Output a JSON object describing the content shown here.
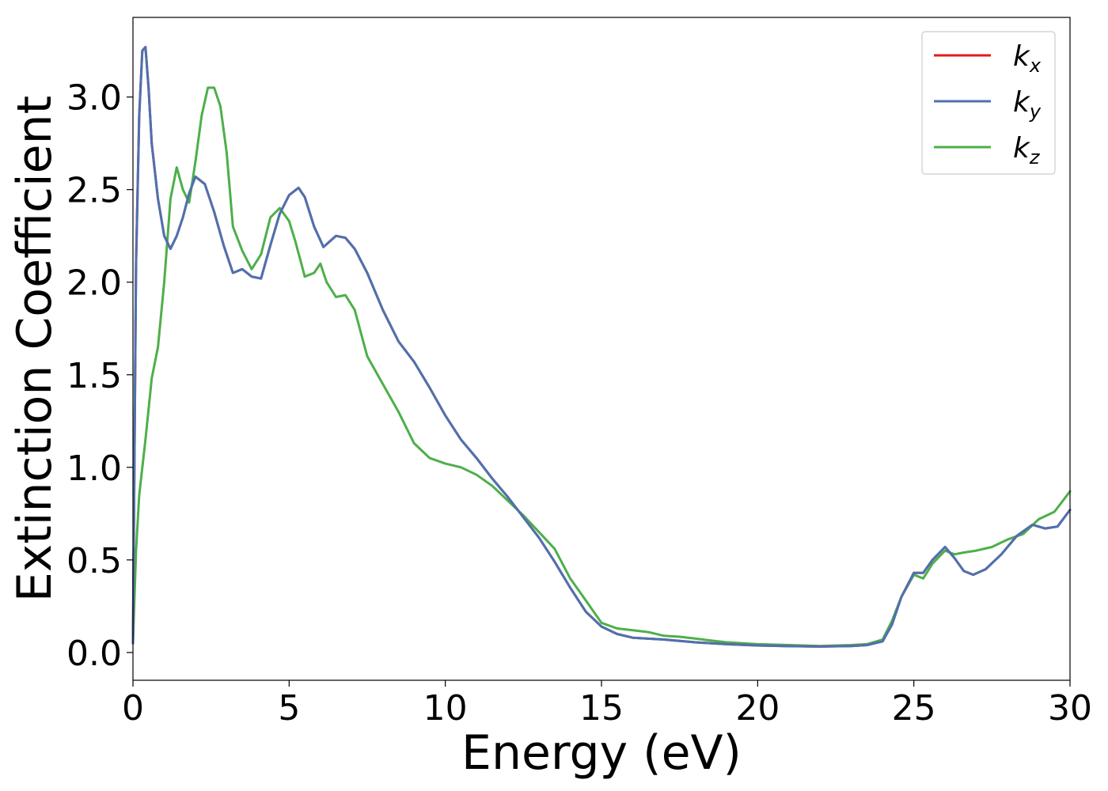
{
  "chart_data": {
    "type": "line",
    "title": "",
    "xlabel": "Energy (eV)",
    "ylabel": "Extinction Coefficient",
    "xlim": [
      0,
      30
    ],
    "ylim": [
      -0.15,
      3.43
    ],
    "xticks": [
      0,
      5,
      10,
      15,
      20,
      25,
      30
    ],
    "xtick_labels": [
      "0",
      "5",
      "10",
      "15",
      "20",
      "25",
      "30"
    ],
    "yticks": [
      0.0,
      0.5,
      1.0,
      1.5,
      2.0,
      2.5,
      3.0
    ],
    "ytick_labels": [
      "0.0",
      "0.5",
      "1.0",
      "1.5",
      "2.0",
      "2.5",
      "3.0"
    ],
    "grid": false,
    "legend_position": "top-right",
    "series": [
      {
        "name": "k",
        "subscript": "x",
        "color": "#e41a1c",
        "x": [
          0,
          0.1,
          0.2,
          0.3,
          0.4,
          0.5,
          0.6,
          0.8,
          1.0,
          1.2,
          1.4,
          1.6,
          1.8,
          2.0,
          2.3,
          2.6,
          2.9,
          3.2,
          3.5,
          3.8,
          4.1,
          4.4,
          4.7,
          5.0,
          5.3,
          5.5,
          5.8,
          6.1,
          6.3,
          6.5,
          6.8,
          7.1,
          7.5,
          8.0,
          8.5,
          9.0,
          9.5,
          10.0,
          10.5,
          11.0,
          11.5,
          12.0,
          12.5,
          13.0,
          13.5,
          14.0,
          14.5,
          15.0,
          15.5,
          16.0,
          17.0,
          18.0,
          19.0,
          20.0,
          21.0,
          22.0,
          23.0,
          23.5,
          24.0,
          24.3,
          24.6,
          25.0,
          25.3,
          25.6,
          26.0,
          26.3,
          26.6,
          26.9,
          27.3,
          27.8,
          28.3,
          28.8,
          29.2,
          29.6,
          30.0
        ],
        "y": [
          0.05,
          2.1,
          2.9,
          3.25,
          3.27,
          3.05,
          2.75,
          2.45,
          2.25,
          2.18,
          2.25,
          2.35,
          2.48,
          2.57,
          2.53,
          2.38,
          2.2,
          2.05,
          2.07,
          2.03,
          2.02,
          2.2,
          2.37,
          2.47,
          2.51,
          2.46,
          2.3,
          2.19,
          2.22,
          2.25,
          2.24,
          2.18,
          2.05,
          1.85,
          1.68,
          1.57,
          1.43,
          1.28,
          1.15,
          1.05,
          0.94,
          0.84,
          0.73,
          0.62,
          0.49,
          0.35,
          0.22,
          0.14,
          0.1,
          0.08,
          0.07,
          0.055,
          0.045,
          0.038,
          0.034,
          0.032,
          0.035,
          0.04,
          0.06,
          0.15,
          0.3,
          0.43,
          0.43,
          0.5,
          0.57,
          0.51,
          0.44,
          0.42,
          0.45,
          0.53,
          0.63,
          0.69,
          0.67,
          0.68,
          0.77
        ]
      },
      {
        "name": "k",
        "subscript": "y",
        "color": "#4c72b0",
        "x": [
          0,
          0.1,
          0.2,
          0.3,
          0.4,
          0.5,
          0.6,
          0.8,
          1.0,
          1.2,
          1.4,
          1.6,
          1.8,
          2.0,
          2.3,
          2.6,
          2.9,
          3.2,
          3.5,
          3.8,
          4.1,
          4.4,
          4.7,
          5.0,
          5.3,
          5.5,
          5.8,
          6.1,
          6.3,
          6.5,
          6.8,
          7.1,
          7.5,
          8.0,
          8.5,
          9.0,
          9.5,
          10.0,
          10.5,
          11.0,
          11.5,
          12.0,
          12.5,
          13.0,
          13.5,
          14.0,
          14.5,
          15.0,
          15.5,
          16.0,
          17.0,
          18.0,
          19.0,
          20.0,
          21.0,
          22.0,
          23.0,
          23.5,
          24.0,
          24.3,
          24.6,
          25.0,
          25.3,
          25.6,
          26.0,
          26.3,
          26.6,
          26.9,
          27.3,
          27.8,
          28.3,
          28.8,
          29.2,
          29.6,
          30.0
        ],
        "y": [
          0.05,
          2.1,
          2.9,
          3.25,
          3.27,
          3.05,
          2.75,
          2.45,
          2.25,
          2.18,
          2.25,
          2.35,
          2.48,
          2.57,
          2.53,
          2.38,
          2.2,
          2.05,
          2.07,
          2.03,
          2.02,
          2.2,
          2.37,
          2.47,
          2.51,
          2.46,
          2.3,
          2.19,
          2.22,
          2.25,
          2.24,
          2.18,
          2.05,
          1.85,
          1.68,
          1.57,
          1.43,
          1.28,
          1.15,
          1.05,
          0.94,
          0.84,
          0.73,
          0.62,
          0.49,
          0.35,
          0.22,
          0.14,
          0.1,
          0.08,
          0.07,
          0.055,
          0.045,
          0.038,
          0.034,
          0.032,
          0.035,
          0.04,
          0.06,
          0.15,
          0.3,
          0.43,
          0.43,
          0.5,
          0.57,
          0.51,
          0.44,
          0.42,
          0.45,
          0.53,
          0.63,
          0.69,
          0.67,
          0.68,
          0.77
        ]
      },
      {
        "name": "k",
        "subscript": "z",
        "color": "#4daf4a",
        "x": [
          0,
          0.1,
          0.2,
          0.4,
          0.6,
          0.8,
          1.0,
          1.2,
          1.4,
          1.6,
          1.8,
          2.0,
          2.2,
          2.4,
          2.6,
          2.8,
          3.0,
          3.2,
          3.5,
          3.8,
          4.1,
          4.4,
          4.7,
          5.0,
          5.2,
          5.5,
          5.8,
          6.0,
          6.2,
          6.5,
          6.8,
          7.1,
          7.5,
          8.0,
          8.5,
          9.0,
          9.5,
          10.0,
          10.5,
          11.0,
          11.5,
          12.0,
          12.5,
          13.0,
          13.5,
          14.0,
          14.5,
          15.0,
          15.5,
          16.0,
          16.5,
          17.0,
          17.5,
          18.0,
          18.5,
          19.0,
          20.0,
          21.0,
          22.0,
          23.0,
          23.5,
          24.0,
          24.3,
          24.6,
          25.0,
          25.3,
          25.6,
          26.0,
          26.3,
          26.6,
          27.0,
          27.5,
          28.0,
          28.5,
          29.0,
          29.5,
          30.0
        ],
        "y": [
          0.05,
          0.55,
          0.85,
          1.15,
          1.48,
          1.65,
          2.0,
          2.45,
          2.62,
          2.5,
          2.43,
          2.65,
          2.9,
          3.05,
          3.05,
          2.95,
          2.7,
          2.3,
          2.17,
          2.07,
          2.15,
          2.35,
          2.4,
          2.33,
          2.22,
          2.03,
          2.05,
          2.1,
          2.0,
          1.92,
          1.93,
          1.85,
          1.6,
          1.45,
          1.3,
          1.13,
          1.05,
          1.02,
          1.0,
          0.96,
          0.9,
          0.82,
          0.74,
          0.65,
          0.56,
          0.4,
          0.28,
          0.16,
          0.13,
          0.12,
          0.11,
          0.09,
          0.085,
          0.075,
          0.065,
          0.055,
          0.045,
          0.04,
          0.035,
          0.04,
          0.045,
          0.07,
          0.17,
          0.3,
          0.42,
          0.4,
          0.48,
          0.55,
          0.53,
          0.54,
          0.55,
          0.57,
          0.61,
          0.64,
          0.72,
          0.76,
          0.87
        ]
      }
    ]
  }
}
